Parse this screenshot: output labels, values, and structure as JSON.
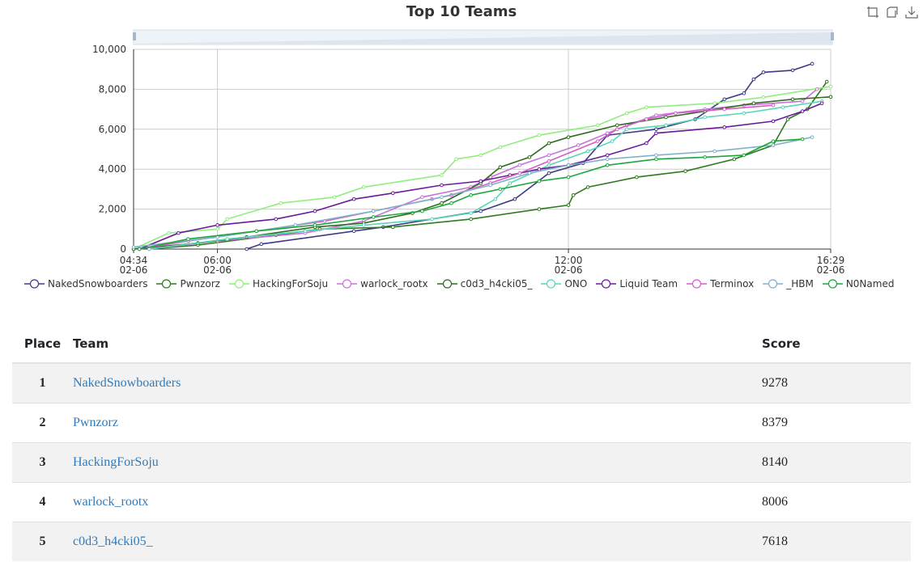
{
  "chart_data": {
    "type": "line",
    "title": "Top 10 Teams",
    "x_axis": {
      "type": "time",
      "ticks": [
        {
          "time": "04:34",
          "date": "02-06"
        },
        {
          "time": "06:00",
          "date": "02-06"
        },
        {
          "time": "12:00",
          "date": "02-06"
        },
        {
          "time": "16:29",
          "date": "02-06"
        }
      ]
    },
    "y_axis": {
      "ticks": [
        "0",
        "2,000",
        "4,000",
        "6,000",
        "8,000",
        "10,000"
      ],
      "ylim": [
        0,
        10000
      ]
    },
    "grid": true,
    "legend_position": "bottom",
    "data_zoom": true,
    "series": [
      {
        "name": "NakedSnowboarders",
        "color": "#3d3a86",
        "points": [
          [
            "06:30",
            0
          ],
          [
            "06:45",
            250
          ],
          [
            "08:20",
            900
          ],
          [
            "08:50",
            1100
          ],
          [
            "10:30",
            1900
          ],
          [
            "11:05",
            2500
          ],
          [
            "11:40",
            3800
          ],
          [
            "12:15",
            4300
          ],
          [
            "12:40",
            5700
          ],
          [
            "13:30",
            6000
          ],
          [
            "14:10",
            6500
          ],
          [
            "14:40",
            7500
          ],
          [
            "15:00",
            7800
          ],
          [
            "15:10",
            8500
          ],
          [
            "15:20",
            8850
          ],
          [
            "15:50",
            8950
          ],
          [
            "16:10",
            9278
          ]
        ]
      },
      {
        "name": "Pwnzorz",
        "color": "#2e7a1f",
        "points": [
          [
            "04:50",
            0
          ],
          [
            "05:40",
            200
          ],
          [
            "07:00",
            700
          ],
          [
            "07:45",
            1000
          ],
          [
            "09:00",
            1100
          ],
          [
            "10:20",
            1500
          ],
          [
            "11:30",
            2000
          ],
          [
            "12:00",
            2200
          ],
          [
            "12:05",
            2700
          ],
          [
            "12:20",
            3100
          ],
          [
            "13:10",
            3600
          ],
          [
            "14:00",
            3900
          ],
          [
            "14:50",
            4500
          ],
          [
            "15:30",
            5200
          ],
          [
            "15:45",
            6500
          ],
          [
            "16:05",
            7000
          ],
          [
            "16:25",
            8379
          ]
        ]
      },
      {
        "name": "HackingForSoju",
        "color": "#90ee7e",
        "points": [
          [
            "04:34",
            0
          ],
          [
            "05:10",
            800
          ],
          [
            "06:00",
            1000
          ],
          [
            "06:10",
            1500
          ],
          [
            "07:05",
            2300
          ],
          [
            "08:00",
            2600
          ],
          [
            "08:30",
            3100
          ],
          [
            "09:50",
            3700
          ],
          [
            "10:05",
            4500
          ],
          [
            "10:30",
            4700
          ],
          [
            "10:50",
            5100
          ],
          [
            "11:30",
            5700
          ],
          [
            "12:30",
            6200
          ],
          [
            "13:00",
            6800
          ],
          [
            "13:20",
            7100
          ],
          [
            "14:30",
            7300
          ],
          [
            "15:20",
            7600
          ],
          [
            "16:29",
            8140
          ]
        ]
      },
      {
        "name": "warlock_rootx",
        "color": "#c873d9",
        "points": [
          [
            "04:50",
            0
          ],
          [
            "06:00",
            400
          ],
          [
            "07:30",
            800
          ],
          [
            "08:30",
            1400
          ],
          [
            "09:30",
            2600
          ],
          [
            "10:20",
            3100
          ],
          [
            "10:40",
            3600
          ],
          [
            "11:10",
            4200
          ],
          [
            "11:40",
            4700
          ],
          [
            "12:10",
            5200
          ],
          [
            "12:40",
            5800
          ],
          [
            "13:00",
            6200
          ],
          [
            "13:30",
            6700
          ],
          [
            "14:20",
            7000
          ],
          [
            "15:00",
            7200
          ],
          [
            "16:00",
            7400
          ],
          [
            "16:15",
            8006
          ]
        ]
      },
      {
        "name": "c0d3_h4cki05_",
        "color": "#2f6b1e",
        "points": [
          [
            "04:34",
            0
          ],
          [
            "05:40",
            300
          ],
          [
            "06:30",
            600
          ],
          [
            "07:40",
            1100
          ],
          [
            "08:30",
            1300
          ],
          [
            "09:20",
            1800
          ],
          [
            "09:50",
            2300
          ],
          [
            "10:30",
            3300
          ],
          [
            "10:50",
            4100
          ],
          [
            "11:20",
            4600
          ],
          [
            "11:40",
            5300
          ],
          [
            "12:00",
            5600
          ],
          [
            "12:50",
            6200
          ],
          [
            "13:40",
            6600
          ],
          [
            "14:20",
            6900
          ],
          [
            "15:10",
            7300
          ],
          [
            "15:50",
            7500
          ],
          [
            "16:29",
            7618
          ]
        ]
      },
      {
        "name": "ONO",
        "color": "#58d6b8",
        "points": [
          [
            "04:50",
            0
          ],
          [
            "06:10",
            500
          ],
          [
            "07:30",
            900
          ],
          [
            "08:30",
            1200
          ],
          [
            "09:40",
            1500
          ],
          [
            "10:20",
            1800
          ],
          [
            "10:45",
            2500
          ],
          [
            "11:00",
            3300
          ],
          [
            "11:40",
            4200
          ],
          [
            "12:20",
            4900
          ],
          [
            "12:45",
            5400
          ],
          [
            "13:00",
            6000
          ],
          [
            "13:40",
            6200
          ],
          [
            "14:20",
            6600
          ],
          [
            "15:00",
            6800
          ],
          [
            "15:40",
            7100
          ],
          [
            "16:20",
            7400
          ]
        ]
      },
      {
        "name": "Liquid Team",
        "color": "#6a1b9a",
        "points": [
          [
            "04:40",
            0
          ],
          [
            "05:20",
            800
          ],
          [
            "06:00",
            1200
          ],
          [
            "07:00",
            1500
          ],
          [
            "07:40",
            1900
          ],
          [
            "08:20",
            2500
          ],
          [
            "09:00",
            2800
          ],
          [
            "09:50",
            3200
          ],
          [
            "10:30",
            3400
          ],
          [
            "11:00",
            3700
          ],
          [
            "11:30",
            4000
          ],
          [
            "12:00",
            4200
          ],
          [
            "12:40",
            4700
          ],
          [
            "13:20",
            5300
          ],
          [
            "13:30",
            5800
          ],
          [
            "14:40",
            6100
          ],
          [
            "15:30",
            6400
          ],
          [
            "16:00",
            6900
          ],
          [
            "16:20",
            7300
          ]
        ]
      },
      {
        "name": "Terminox",
        "color": "#d35fc8",
        "points": [
          [
            "04:40",
            0
          ],
          [
            "05:30",
            400
          ],
          [
            "06:40",
            900
          ],
          [
            "07:50",
            1400
          ],
          [
            "08:40",
            1900
          ],
          [
            "09:40",
            2500
          ],
          [
            "10:00",
            2700
          ],
          [
            "10:40",
            3300
          ],
          [
            "11:10",
            3800
          ],
          [
            "11:40",
            4400
          ],
          [
            "12:30",
            5400
          ],
          [
            "12:50",
            6000
          ],
          [
            "13:20",
            6500
          ],
          [
            "13:50",
            6800
          ],
          [
            "14:40",
            7000
          ],
          [
            "15:30",
            7200
          ]
        ]
      },
      {
        "name": "_HBM",
        "color": "#7fb2c9",
        "points": [
          [
            "04:34",
            100
          ],
          [
            "06:00",
            600
          ],
          [
            "07:20",
            1200
          ],
          [
            "08:40",
            1900
          ],
          [
            "09:50",
            2600
          ],
          [
            "10:40",
            3200
          ],
          [
            "11:20",
            3800
          ],
          [
            "12:00",
            4200
          ],
          [
            "12:40",
            4500
          ],
          [
            "13:30",
            4700
          ],
          [
            "14:30",
            4900
          ],
          [
            "15:30",
            5200
          ],
          [
            "16:10",
            5600
          ]
        ]
      },
      {
        "name": "N0Named",
        "color": "#1ca63c",
        "points": [
          [
            "04:40",
            0
          ],
          [
            "05:30",
            500
          ],
          [
            "06:40",
            900
          ],
          [
            "07:40",
            1200
          ],
          [
            "08:40",
            1600
          ],
          [
            "09:30",
            1900
          ],
          [
            "10:00",
            2300
          ],
          [
            "10:20",
            2700
          ],
          [
            "10:50",
            3000
          ],
          [
            "11:30",
            3400
          ],
          [
            "12:00",
            3600
          ],
          [
            "12:40",
            4200
          ],
          [
            "13:30",
            4500
          ],
          [
            "14:20",
            4600
          ],
          [
            "15:00",
            4700
          ],
          [
            "15:30",
            5400
          ],
          [
            "16:00",
            5500
          ]
        ]
      }
    ]
  },
  "scoreboard": {
    "headers": {
      "place": "Place",
      "team": "Team",
      "score": "Score"
    },
    "rows": [
      {
        "place": "1",
        "team": "NakedSnowboarders",
        "score": "9278"
      },
      {
        "place": "2",
        "team": "Pwnzorz",
        "score": "8379"
      },
      {
        "place": "3",
        "team": "HackingForSoju",
        "score": "8140"
      },
      {
        "place": "4",
        "team": "warlock_rootx",
        "score": "8006"
      },
      {
        "place": "5",
        "team": "c0d3_h4cki05_",
        "score": "7618"
      }
    ]
  },
  "toolbox": [
    "zoom-icon",
    "zoom-reset-icon",
    "save-image-icon"
  ]
}
